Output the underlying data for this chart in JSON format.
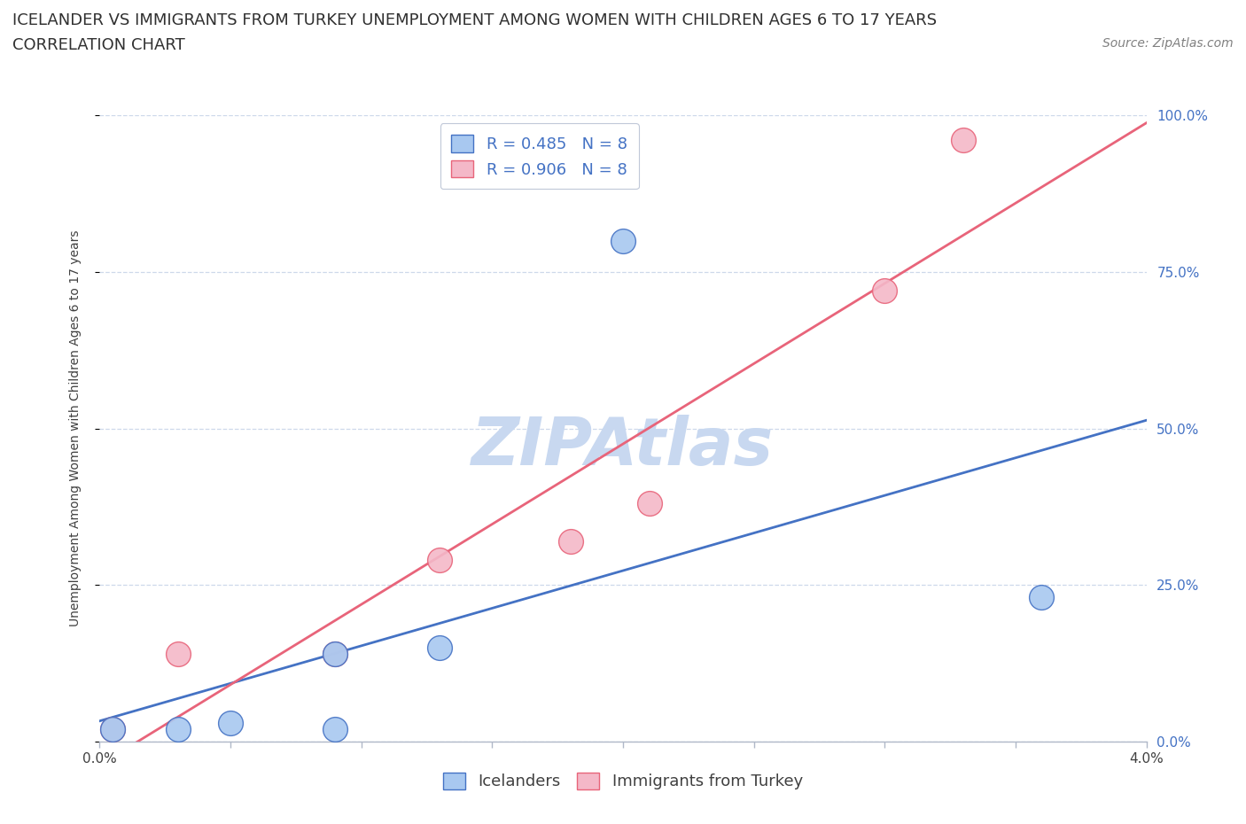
{
  "title_line1": "ICELANDER VS IMMIGRANTS FROM TURKEY UNEMPLOYMENT AMONG WOMEN WITH CHILDREN AGES 6 TO 17 YEARS",
  "title_line2": "CORRELATION CHART",
  "source": "Source: ZipAtlas.com",
  "ylabel": "Unemployment Among Women with Children Ages 6 to 17 years",
  "x_min": 0.0,
  "x_max": 0.04,
  "y_min": 0.0,
  "y_max": 1.0,
  "x_ticks": [
    0.0,
    0.005,
    0.01,
    0.015,
    0.02,
    0.025,
    0.03,
    0.035,
    0.04
  ],
  "y_ticks": [
    0.0,
    0.25,
    0.5,
    0.75,
    1.0
  ],
  "y_tick_labels": [
    "0.0%",
    "25.0%",
    "50.0%",
    "75.0%",
    "100.0%"
  ],
  "icelander_x": [
    0.0005,
    0.003,
    0.005,
    0.009,
    0.009,
    0.013,
    0.02,
    0.036
  ],
  "icelander_y": [
    0.02,
    0.02,
    0.03,
    0.14,
    0.02,
    0.15,
    0.8,
    0.23
  ],
  "turkey_x": [
    0.0005,
    0.003,
    0.009,
    0.013,
    0.018,
    0.021,
    0.03,
    0.033
  ],
  "turkey_y": [
    0.02,
    0.14,
    0.14,
    0.29,
    0.32,
    0.38,
    0.72,
    0.96
  ],
  "icelander_color": "#a8c8f0",
  "turkey_color": "#f4b8c8",
  "icelander_line_color": "#4472c4",
  "turkey_line_color": "#e8647a",
  "R_icelander": 0.485,
  "R_turkey": 0.906,
  "N_icelander": 8,
  "N_turkey": 8,
  "watermark": "ZIPAtlas",
  "watermark_color": "#c8d8f0",
  "legend_labels": [
    "Icelanders",
    "Immigrants from Turkey"
  ],
  "background_color": "#ffffff",
  "grid_color": "#c8d4e8",
  "title_fontsize": 13,
  "subtitle_fontsize": 13,
  "source_fontsize": 10,
  "axis_label_fontsize": 10,
  "tick_fontsize": 11,
  "legend_fontsize": 13
}
